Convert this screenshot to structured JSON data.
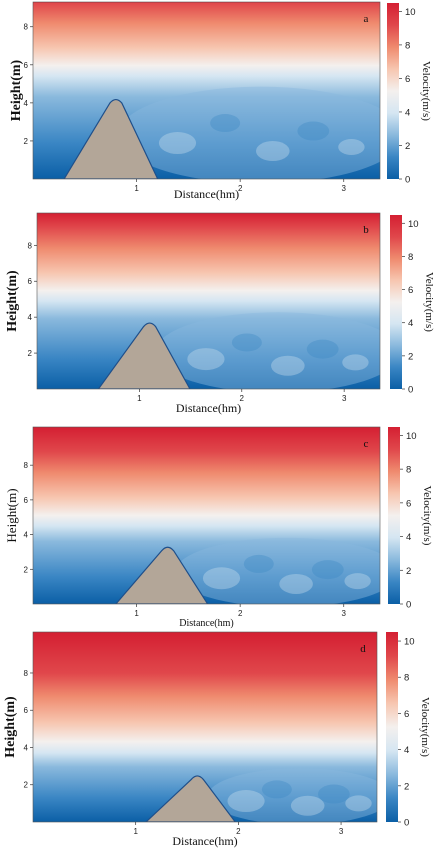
{
  "colors": {
    "scale": [
      "#0b5fa6",
      "#3a86c4",
      "#8ab9dd",
      "#d5e6f2",
      "#f4f0ee",
      "#f7c6b0",
      "#ef8a6e",
      "#e0474b",
      "#d41f32"
    ],
    "ground": "#b3a698"
  },
  "chart_data": [
    {
      "type": "heatmap",
      "panel_label": "a",
      "xlabel": "Distance(hm)",
      "ylabel": "Height(m)",
      "colorbar_label": "Velocity(m/s)",
      "x_ticks": [
        "1",
        "2",
        "3"
      ],
      "y_ticks": [
        "2",
        "4",
        "6",
        "8"
      ],
      "colorbar_ticks": [
        "0",
        "2",
        "4",
        "6",
        "8",
        "10"
      ],
      "xlim": [
        0,
        3.35
      ],
      "ylim": [
        0,
        9.3
      ],
      "vlim": [
        0,
        10.5
      ],
      "obstacle": {
        "peak_distance": 0.8,
        "peak_height": 4.2
      }
    },
    {
      "type": "heatmap",
      "panel_label": "b",
      "xlabel": "Distance(hm)",
      "ylabel": "Height(m)",
      "colorbar_label": "Velocity(m/s)",
      "x_ticks": [
        "1",
        "2",
        "3"
      ],
      "y_ticks": [
        "2",
        "4",
        "6",
        "8"
      ],
      "colorbar_ticks": [
        "0",
        "2",
        "4",
        "6",
        "8",
        "10"
      ],
      "xlim": [
        0,
        3.35
      ],
      "ylim": [
        0,
        9.8
      ],
      "vlim": [
        0,
        10.5
      ],
      "obstacle": {
        "peak_distance": 1.1,
        "peak_height": 3.7
      }
    },
    {
      "type": "heatmap",
      "panel_label": "c",
      "xlabel": "Distance(hm)",
      "ylabel": "Height(m)",
      "colorbar_label": "Velocity(m/s)",
      "x_ticks": [
        "1",
        "2",
        "3"
      ],
      "y_ticks": [
        "2",
        "4",
        "6",
        "8"
      ],
      "colorbar_ticks": [
        "0",
        "2",
        "4",
        "6",
        "8",
        "10"
      ],
      "xlim": [
        0,
        3.35
      ],
      "ylim": [
        0,
        10.2
      ],
      "vlim": [
        0,
        10.5
      ],
      "obstacle": {
        "peak_distance": 1.3,
        "peak_height": 3.3
      }
    },
    {
      "type": "heatmap",
      "panel_label": "d",
      "xlabel": "Distance(hm)",
      "ylabel": "Height(m)",
      "colorbar_label": "Velocity(m/s)",
      "x_ticks": [
        "1",
        "2",
        "3"
      ],
      "y_ticks": [
        "2",
        "4",
        "6",
        "8"
      ],
      "colorbar_ticks": [
        "0",
        "2",
        "4",
        "6",
        "8",
        "10"
      ],
      "xlim": [
        0,
        3.35
      ],
      "ylim": [
        0,
        10.2
      ],
      "vlim": [
        0,
        10.5
      ],
      "obstacle": {
        "peak_distance": 1.6,
        "peak_height": 2.5
      }
    }
  ]
}
